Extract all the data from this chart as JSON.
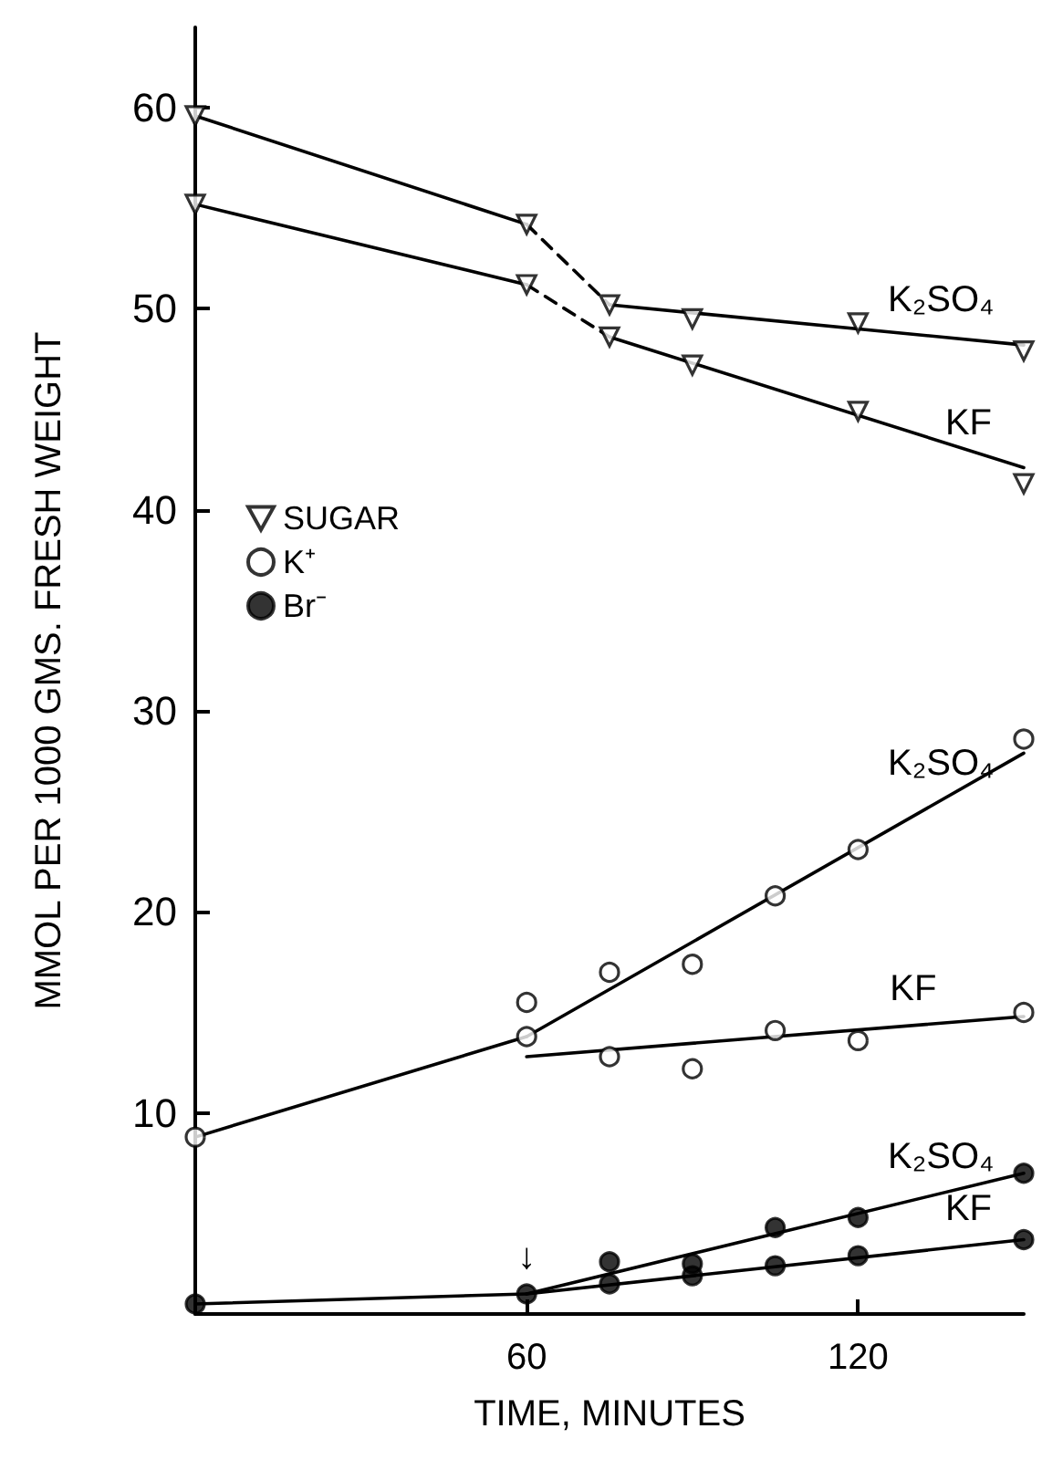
{
  "chart_data": {
    "type": "scatter",
    "xlabel": "TIME, MINUTES",
    "ylabel": "MMOL PER 1000 GMS. FRESH WEIGHT",
    "xlim": [
      0,
      150
    ],
    "xticks": [
      60,
      120
    ],
    "ylim": [
      0,
      64
    ],
    "yticks": [
      10,
      20,
      30,
      40,
      50,
      60
    ],
    "grid": false,
    "legend": "left",
    "series": [
      {
        "name": "SUGAR",
        "marker": "triangle",
        "color": "#ffffff",
        "x": [
          0,
          60,
          75,
          90,
          120,
          150,
          0,
          60,
          75,
          90,
          120,
          150
        ],
        "values": [
          59.6,
          54.2,
          50.2,
          49.5,
          49.3,
          47.9,
          55.2,
          51.2,
          48.6,
          47.2,
          44.9,
          41.3
        ]
      },
      {
        "name": "K⁺",
        "marker": "circle",
        "color": "#ffffff",
        "x": [
          0,
          60,
          75,
          90,
          105,
          120,
          150,
          60,
          75,
          90,
          105,
          120,
          150
        ],
        "values": [
          8.8,
          15.5,
          17.0,
          17.4,
          20.8,
          23.1,
          28.6,
          13.8,
          12.8,
          12.2,
          14.1,
          13.6,
          15.0
        ]
      },
      {
        "name": "Br⁻",
        "marker": "circle",
        "color": "#000000",
        "x": [
          0,
          60,
          75,
          90,
          105,
          120,
          150,
          75,
          90,
          105,
          120,
          150
        ],
        "values": [
          0.5,
          1.0,
          2.6,
          2.5,
          4.3,
          4.8,
          7.0,
          1.5,
          1.9,
          2.4,
          2.9,
          3.7
        ]
      },
      {
        "type": "line",
        "marker": "none",
        "line_style": "solid",
        "color": "#000000",
        "x": [
          0,
          60
        ],
        "values": [
          59.6,
          54.2
        ]
      },
      {
        "type": "line",
        "marker": "none",
        "line_style": "dashed",
        "color": "#000000",
        "x": [
          60,
          75
        ],
        "values": [
          54.2,
          50.2
        ]
      },
      {
        "type": "line",
        "marker": "none",
        "line_style": "solid",
        "color": "#000000",
        "x": [
          75,
          150
        ],
        "values": [
          50.2,
          48.2
        ]
      },
      {
        "type": "line",
        "marker": "none",
        "line_style": "solid",
        "color": "#000000",
        "x": [
          0,
          60
        ],
        "values": [
          55.2,
          51.2
        ]
      },
      {
        "type": "line",
        "marker": "none",
        "line_style": "dashed",
        "color": "#000000",
        "x": [
          60,
          75
        ],
        "values": [
          51.2,
          48.6
        ]
      },
      {
        "type": "line",
        "marker": "none",
        "line_style": "solid",
        "color": "#000000",
        "x": [
          75,
          150
        ],
        "values": [
          48.6,
          42.1
        ]
      },
      {
        "type": "line",
        "marker": "none",
        "line_style": "solid",
        "color": "#000000",
        "x": [
          0,
          60
        ],
        "values": [
          8.8,
          13.8
        ]
      },
      {
        "type": "line",
        "marker": "none",
        "line_style": "solid",
        "color": "#000000",
        "x": [
          60,
          150
        ],
        "values": [
          13.8,
          27.9
        ]
      },
      {
        "type": "line",
        "marker": "none",
        "line_style": "solid",
        "color": "#000000",
        "x": [
          60,
          150
        ],
        "values": [
          12.8,
          14.8
        ]
      },
      {
        "type": "line",
        "marker": "none",
        "line_style": "solid",
        "color": "#000000",
        "x": [
          0,
          60
        ],
        "values": [
          0.5,
          1.0
        ]
      },
      {
        "type": "line",
        "marker": "none",
        "line_style": "solid",
        "color": "#000000",
        "x": [
          60,
          150
        ],
        "values": [
          1.0,
          7.0
        ]
      },
      {
        "type": "line",
        "marker": "none",
        "line_style": "solid",
        "color": "#000000",
        "x": [
          60,
          150
        ],
        "values": [
          1.0,
          3.7
        ]
      }
    ],
    "annotations": [
      {
        "text": "K₂SO₄",
        "x": 135,
        "y": 48.6
      },
      {
        "text": "KF",
        "x": 140,
        "y": 42.5
      },
      {
        "text": "K₂SO₄",
        "x": 135,
        "y": 25.55
      },
      {
        "text": "KF",
        "x": 130,
        "y": 14.36
      },
      {
        "text": "K₂SO₄",
        "x": 135,
        "y": 6.0
      },
      {
        "text": "KF",
        "x": 140,
        "y": 3.4
      },
      {
        "text": "↓",
        "x": 60,
        "y": 1.0
      }
    ]
  }
}
